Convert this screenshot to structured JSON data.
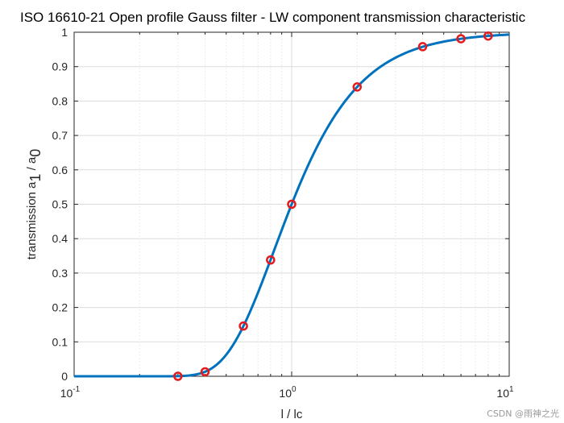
{
  "chart_data": {
    "type": "line",
    "title": "ISO 16610-21 Open profile Gauss filter - LW component transmission characteristic",
    "xlabel": "l / lc",
    "ylabel": "transmission a",
    "ylabel_sub1": "1",
    "ylabel_sep": " / a",
    "ylabel_sub0": "0",
    "x_scale": "log",
    "xlim": [
      0.1,
      10
    ],
    "ylim": [
      0,
      1
    ],
    "grid": true,
    "x_ticks": [
      {
        "value": 0.1,
        "base": "10",
        "exp": "-1"
      },
      {
        "value": 1,
        "base": "10",
        "exp": "0"
      },
      {
        "value": 10,
        "base": "10",
        "exp": "1"
      }
    ],
    "y_ticks": [
      {
        "value": 0,
        "label": "0"
      },
      {
        "value": 0.1,
        "label": "0.1"
      },
      {
        "value": 0.2,
        "label": "0.2"
      },
      {
        "value": 0.3,
        "label": "0.3"
      },
      {
        "value": 0.4,
        "label": "0.4"
      },
      {
        "value": 0.5,
        "label": "0.5"
      },
      {
        "value": 0.6,
        "label": "0.6"
      },
      {
        "value": 0.7,
        "label": "0.7"
      },
      {
        "value": 0.8,
        "label": "0.8"
      },
      {
        "value": 0.9,
        "label": "0.9"
      },
      {
        "value": 1,
        "label": "1"
      }
    ],
    "curve": {
      "color": "#0072BD",
      "formula": "exp(-pi*(ln2/pi)*(1/x)^2)"
    },
    "markers": {
      "color": "#E41A1C",
      "points": [
        {
          "x": 0.3,
          "y": 0.0
        },
        {
          "x": 0.4,
          "y": 0.013
        },
        {
          "x": 0.6,
          "y": 0.146
        },
        {
          "x": 0.8,
          "y": 0.338
        },
        {
          "x": 1.0,
          "y": 0.5
        },
        {
          "x": 2.0,
          "y": 0.841
        },
        {
          "x": 4.0,
          "y": 0.958
        },
        {
          "x": 6.0,
          "y": 0.981
        },
        {
          "x": 8.0,
          "y": 0.989
        }
      ]
    }
  },
  "watermark": "CSDN @雨神之光"
}
